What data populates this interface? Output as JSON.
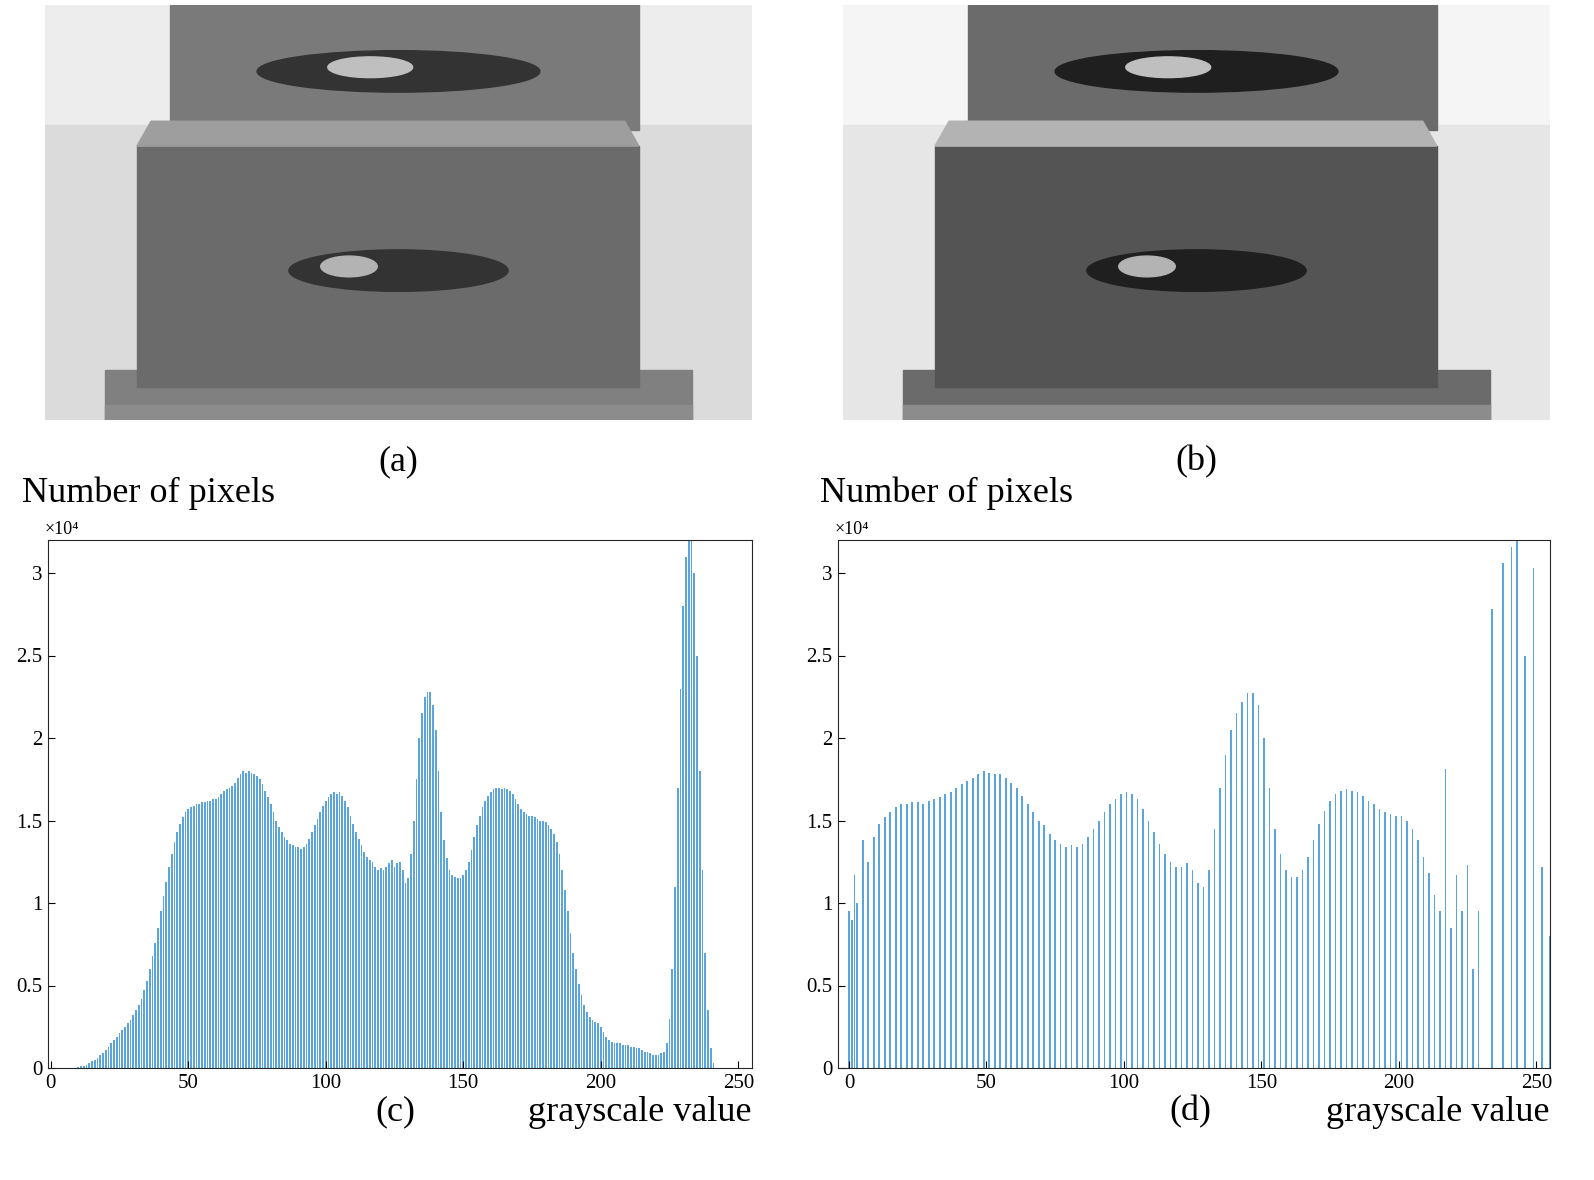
{
  "images": [
    {
      "caption": "(a)"
    },
    {
      "caption": "(b)"
    }
  ],
  "chart_data": [
    {
      "type": "bar",
      "caption": "(c)",
      "y_label": "Number of pixels",
      "y_multiplier": "×10⁴",
      "x_label": "grayscale value",
      "color": "#5aa5dc",
      "grid": false,
      "xlim": [
        -1,
        255
      ],
      "ylim": [
        0,
        3.2
      ],
      "xticks": [
        0,
        50,
        100,
        150,
        200,
        250
      ],
      "yticks": [
        0,
        0.5,
        1,
        1.5,
        2,
        2.5,
        3
      ],
      "x": [
        10,
        11,
        12,
        13,
        14,
        15,
        16,
        17,
        18,
        19,
        20,
        21,
        22,
        23,
        24,
        25,
        26,
        27,
        28,
        29,
        30,
        31,
        32,
        33,
        34,
        35,
        36,
        37,
        38,
        39,
        40,
        41,
        42,
        43,
        44,
        45,
        46,
        47,
        48,
        49,
        50,
        51,
        52,
        53,
        54,
        55,
        56,
        57,
        58,
        59,
        60,
        61,
        62,
        63,
        64,
        65,
        66,
        67,
        68,
        69,
        70,
        71,
        72,
        73,
        74,
        75,
        76,
        77,
        78,
        79,
        80,
        81,
        82,
        83,
        84,
        85,
        86,
        87,
        88,
        89,
        90,
        91,
        92,
        93,
        94,
        95,
        96,
        97,
        98,
        99,
        100,
        101,
        102,
        103,
        104,
        105,
        106,
        107,
        108,
        109,
        110,
        111,
        112,
        113,
        114,
        115,
        116,
        117,
        118,
        119,
        120,
        121,
        122,
        123,
        124,
        125,
        126,
        127,
        128,
        129,
        130,
        131,
        132,
        133,
        134,
        135,
        136,
        137,
        138,
        139,
        140,
        141,
        142,
        143,
        144,
        145,
        146,
        147,
        148,
        149,
        150,
        151,
        152,
        153,
        154,
        155,
        156,
        157,
        158,
        159,
        160,
        161,
        162,
        163,
        164,
        165,
        166,
        167,
        168,
        169,
        170,
        171,
        172,
        173,
        174,
        175,
        176,
        177,
        178,
        179,
        180,
        181,
        182,
        183,
        184,
        185,
        186,
        187,
        188,
        189,
        190,
        191,
        192,
        193,
        194,
        195,
        196,
        197,
        198,
        199,
        200,
        201,
        202,
        203,
        204,
        205,
        206,
        207,
        208,
        209,
        210,
        211,
        212,
        213,
        214,
        215,
        216,
        217,
        218,
        219,
        220,
        221,
        222,
        223,
        224,
        225,
        226,
        227,
        228,
        229,
        230,
        231,
        232,
        233,
        234,
        235,
        236,
        237,
        238,
        239,
        240,
        241
      ],
      "values": [
        0.005,
        0.01,
        0.015,
        0.02,
        0.03,
        0.04,
        0.05,
        0.06,
        0.08,
        0.09,
        0.11,
        0.13,
        0.15,
        0.17,
        0.19,
        0.21,
        0.23,
        0.25,
        0.27,
        0.29,
        0.32,
        0.35,
        0.38,
        0.42,
        0.47,
        0.53,
        0.6,
        0.68,
        0.76,
        0.85,
        0.95,
        1.04,
        1.13,
        1.22,
        1.3,
        1.37,
        1.43,
        1.48,
        1.52,
        1.55,
        1.57,
        1.58,
        1.59,
        1.6,
        1.6,
        1.61,
        1.61,
        1.62,
        1.62,
        1.63,
        1.63,
        1.64,
        1.66,
        1.68,
        1.69,
        1.7,
        1.71,
        1.73,
        1.76,
        1.78,
        1.8,
        1.79,
        1.8,
        1.79,
        1.78,
        1.77,
        1.75,
        1.72,
        1.68,
        1.64,
        1.6,
        1.55,
        1.5,
        1.46,
        1.43,
        1.4,
        1.38,
        1.36,
        1.35,
        1.34,
        1.34,
        1.33,
        1.34,
        1.36,
        1.39,
        1.43,
        1.47,
        1.51,
        1.55,
        1.59,
        1.62,
        1.64,
        1.66,
        1.67,
        1.66,
        1.67,
        1.65,
        1.62,
        1.58,
        1.53,
        1.48,
        1.43,
        1.39,
        1.35,
        1.31,
        1.28,
        1.26,
        1.25,
        1.22,
        1.2,
        1.21,
        1.2,
        1.22,
        1.24,
        1.26,
        1.22,
        1.24,
        1.25,
        1.2,
        1.12,
        1.15,
        1.3,
        1.5,
        1.75,
        2.0,
        2.15,
        2.25,
        2.28,
        2.28,
        2.2,
        2.05,
        1.8,
        1.55,
        1.38,
        1.27,
        1.2,
        1.17,
        1.16,
        1.15,
        1.15,
        1.17,
        1.2,
        1.25,
        1.32,
        1.4,
        1.47,
        1.53,
        1.58,
        1.62,
        1.65,
        1.67,
        1.69,
        1.7,
        1.7,
        1.69,
        1.7,
        1.69,
        1.68,
        1.66,
        1.63,
        1.6,
        1.57,
        1.55,
        1.54,
        1.53,
        1.53,
        1.52,
        1.51,
        1.5,
        1.5,
        1.49,
        1.47,
        1.45,
        1.42,
        1.37,
        1.3,
        1.2,
        1.08,
        0.95,
        0.82,
        0.7,
        0.6,
        0.51,
        0.44,
        0.38,
        0.34,
        0.31,
        0.29,
        0.28,
        0.27,
        0.25,
        0.22,
        0.19,
        0.17,
        0.16,
        0.15,
        0.15,
        0.15,
        0.14,
        0.14,
        0.14,
        0.13,
        0.13,
        0.12,
        0.12,
        0.11,
        0.1,
        0.1,
        0.09,
        0.08,
        0.08,
        0.08,
        0.09,
        0.1,
        0.15,
        0.3,
        0.6,
        1.1,
        1.7,
        2.3,
        2.8,
        3.1,
        3.2,
        3.2,
        3.0,
        2.5,
        1.8,
        1.2,
        0.7,
        0.35,
        0.12,
        0.03
      ]
    },
    {
      "type": "bar",
      "caption": "(d)",
      "y_label": "Number of pixels",
      "y_multiplier": "×10⁴",
      "x_label": "grayscale value",
      "color": "#5aa5dc",
      "grid": false,
      "xlim": [
        -4,
        255
      ],
      "ylim": [
        0,
        3.2
      ],
      "xticks": [
        0,
        50,
        100,
        150,
        200,
        250
      ],
      "yticks": [
        0,
        0.5,
        1,
        1.5,
        2,
        2.5,
        3
      ],
      "x": [
        0,
        1,
        2,
        3,
        5,
        7,
        9,
        11,
        13,
        15,
        17,
        19,
        21,
        23,
        25,
        27,
        29,
        31,
        33,
        35,
        37,
        39,
        41,
        43,
        45,
        47,
        49,
        51,
        53,
        55,
        57,
        59,
        61,
        63,
        65,
        67,
        69,
        71,
        73,
        75,
        77,
        79,
        81,
        83,
        85,
        87,
        89,
        91,
        93,
        95,
        97,
        99,
        101,
        103,
        105,
        107,
        109,
        111,
        113,
        115,
        117,
        119,
        121,
        123,
        125,
        127,
        129,
        131,
        133,
        135,
        137,
        139,
        141,
        143,
        145,
        147,
        149,
        151,
        153,
        155,
        157,
        159,
        161,
        163,
        165,
        167,
        169,
        171,
        173,
        175,
        177,
        179,
        181,
        183,
        185,
        187,
        189,
        191,
        193,
        195,
        197,
        199,
        201,
        203,
        205,
        207,
        209,
        211,
        213,
        215,
        217,
        219,
        221,
        223,
        225,
        227,
        229,
        234,
        238,
        241,
        243,
        246,
        249,
        252,
        255
      ],
      "values": [
        0.95,
        0.9,
        1.17,
        1.0,
        1.38,
        1.25,
        1.4,
        1.48,
        1.52,
        1.55,
        1.58,
        1.6,
        1.6,
        1.61,
        1.61,
        1.6,
        1.62,
        1.63,
        1.64,
        1.66,
        1.67,
        1.7,
        1.72,
        1.74,
        1.76,
        1.78,
        1.8,
        1.79,
        1.78,
        1.78,
        1.76,
        1.73,
        1.7,
        1.65,
        1.6,
        1.55,
        1.5,
        1.47,
        1.42,
        1.38,
        1.36,
        1.34,
        1.35,
        1.34,
        1.36,
        1.4,
        1.45,
        1.5,
        1.55,
        1.6,
        1.63,
        1.66,
        1.67,
        1.66,
        1.63,
        1.57,
        1.5,
        1.43,
        1.36,
        1.3,
        1.25,
        1.22,
        1.22,
        1.24,
        1.2,
        1.12,
        1.1,
        1.2,
        1.45,
        1.7,
        1.9,
        2.05,
        2.15,
        2.22,
        2.27,
        2.27,
        2.2,
        2.0,
        1.7,
        1.45,
        1.3,
        1.2,
        1.16,
        1.16,
        1.2,
        1.28,
        1.38,
        1.48,
        1.56,
        1.62,
        1.66,
        1.68,
        1.69,
        1.68,
        1.67,
        1.65,
        1.62,
        1.6,
        1.57,
        1.55,
        1.54,
        1.53,
        1.53,
        1.5,
        1.45,
        1.38,
        1.28,
        1.18,
        1.05,
        0.95,
        1.81,
        0.85,
        1.17,
        0.95,
        1.23,
        0.6,
        0.95,
        2.78,
        3.06,
        3.16,
        3.2,
        2.5,
        3.03,
        1.22,
        0.8
      ]
    }
  ]
}
